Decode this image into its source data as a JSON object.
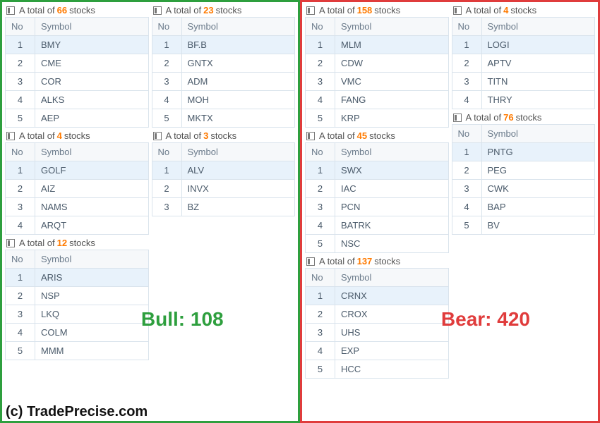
{
  "watermark": "(c) TradePrecise.com",
  "labels": {
    "total_prefix": "A total of ",
    "total_suffix": " stocks",
    "no": "No",
    "symbol": "Symbol",
    "bull": "Bull: 108",
    "bear": "Bear: 420"
  },
  "bull": {
    "col1": [
      {
        "count": "66",
        "rows": [
          [
            1,
            "BMY"
          ],
          [
            2,
            "CME"
          ],
          [
            3,
            "COR"
          ],
          [
            4,
            "ALKS"
          ],
          [
            5,
            "AEP"
          ]
        ]
      },
      {
        "count": "4",
        "rows": [
          [
            1,
            "GOLF"
          ],
          [
            2,
            "AIZ"
          ],
          [
            3,
            "NAMS"
          ],
          [
            4,
            "ARQT"
          ]
        ]
      },
      {
        "count": "12",
        "rows": [
          [
            1,
            "ARIS"
          ],
          [
            2,
            "NSP"
          ],
          [
            3,
            "LKQ"
          ],
          [
            4,
            "COLM"
          ],
          [
            5,
            "MMM"
          ]
        ]
      }
    ],
    "col2": [
      {
        "count": "23",
        "rows": [
          [
            1,
            "BF.B"
          ],
          [
            2,
            "GNTX"
          ],
          [
            3,
            "ADM"
          ],
          [
            4,
            "MOH"
          ],
          [
            5,
            "MKTX"
          ]
        ]
      },
      {
        "count": "3",
        "rows": [
          [
            1,
            "ALV"
          ],
          [
            2,
            "INVX"
          ],
          [
            3,
            "BZ"
          ]
        ]
      }
    ]
  },
  "bear": {
    "col1": [
      {
        "count": "158",
        "rows": [
          [
            1,
            "MLM"
          ],
          [
            2,
            "CDW"
          ],
          [
            3,
            "VMC"
          ],
          [
            4,
            "FANG"
          ],
          [
            5,
            "KRP"
          ]
        ]
      },
      {
        "count": "45",
        "rows": [
          [
            1,
            "SWX"
          ],
          [
            2,
            "IAC"
          ],
          [
            3,
            "PCN"
          ],
          [
            4,
            "BATRK"
          ],
          [
            5,
            "NSC"
          ]
        ]
      },
      {
        "count": "137",
        "rows": [
          [
            1,
            "CRNX"
          ],
          [
            2,
            "CROX"
          ],
          [
            3,
            "UHS"
          ],
          [
            4,
            "EXP"
          ],
          [
            5,
            "HCC"
          ]
        ]
      }
    ],
    "col2": [
      {
        "count": "4",
        "rows": [
          [
            1,
            "LOGI"
          ],
          [
            2,
            "APTV"
          ],
          [
            3,
            "TITN"
          ],
          [
            4,
            "THRY"
          ]
        ]
      },
      {
        "count": "76",
        "rows": [
          [
            1,
            "PNTG"
          ],
          [
            2,
            "PEG"
          ],
          [
            3,
            "CWK"
          ],
          [
            4,
            "BAP"
          ],
          [
            5,
            "BV"
          ]
        ]
      }
    ]
  }
}
